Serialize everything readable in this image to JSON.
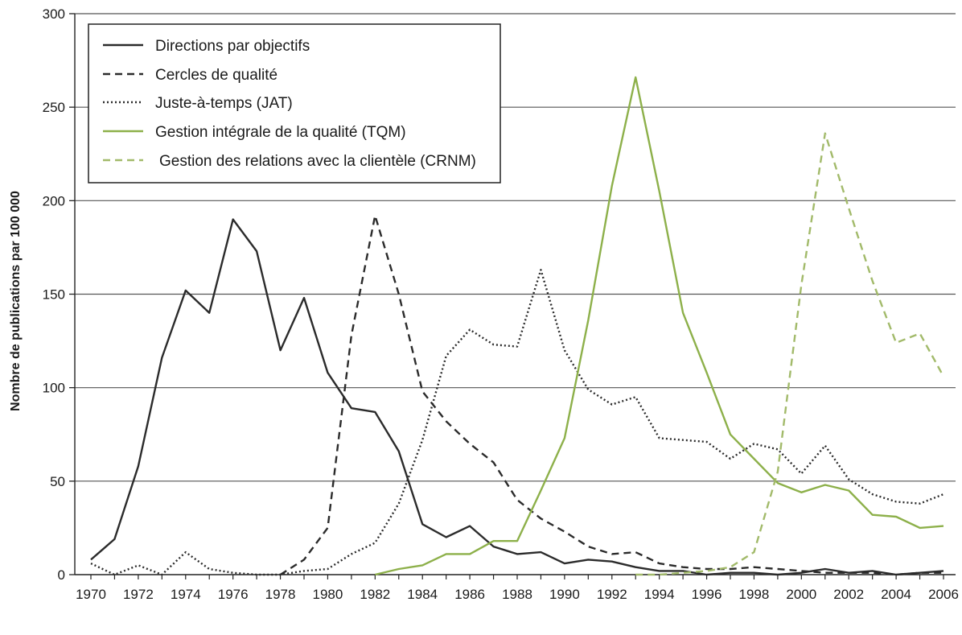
{
  "chart_data": {
    "type": "line",
    "title": "",
    "xlabel": "",
    "ylabel": "Nombre de publications par 100 000",
    "xlim": [
      1970,
      2006
    ],
    "ylim": [
      0,
      300
    ],
    "x_ticks": [
      "1970",
      "1972",
      "1974",
      "1976",
      "1978",
      "1980",
      "1982",
      "1984",
      "1986",
      "1988",
      "1990",
      "1992",
      "1994",
      "1996",
      "1998",
      "2000",
      "2002",
      "2004",
      "2006"
    ],
    "y_ticks": [
      "0",
      "50",
      "100",
      "150",
      "200",
      "250",
      "300"
    ],
    "grid": "horizontal",
    "legend_position": "top-left",
    "series": [
      {
        "name": "Directions par objectifs",
        "color": "#2b2b2b",
        "dash": "solid",
        "x": [
          1970,
          1971,
          1972,
          1973,
          1974,
          1975,
          1976,
          1977,
          1978,
          1979,
          1980,
          1981,
          1982,
          1983,
          1984,
          1985,
          1986,
          1987,
          1988,
          1989,
          1990,
          1991,
          1992,
          1993,
          1994,
          1995,
          1996,
          1997,
          1998,
          1999,
          2000,
          2001,
          2002,
          2003,
          2004,
          2005,
          2006
        ],
        "values": [
          8,
          19,
          58,
          116,
          152,
          140,
          190,
          173,
          120,
          148,
          108,
          89,
          87,
          66,
          27,
          20,
          26,
          15,
          11,
          12,
          6,
          8,
          7,
          4,
          2,
          2,
          0,
          1,
          1,
          0,
          1,
          3,
          1,
          2,
          0,
          1,
          2
        ]
      },
      {
        "name": "Cercles de qualité",
        "color": "#2b2b2b",
        "dash": "dashed",
        "x": [
          1978,
          1979,
          1980,
          1981,
          1982,
          1983,
          1984,
          1985,
          1986,
          1987,
          1988,
          1989,
          1990,
          1991,
          1992,
          1993,
          1994,
          1995,
          1996,
          1997,
          1998,
          1999,
          2000,
          2001,
          2002,
          2003,
          2004,
          2005,
          2006
        ],
        "values": [
          0,
          8,
          25,
          128,
          192,
          150,
          98,
          82,
          70,
          60,
          40,
          30,
          23,
          15,
          11,
          12,
          6,
          4,
          3,
          3,
          4,
          3,
          2,
          1,
          1,
          1,
          0,
          1,
          1
        ]
      },
      {
        "name": "Juste-à-temps (JAT)",
        "color": "#2b2b2b",
        "dash": "dotted",
        "x": [
          1970,
          1971,
          1972,
          1973,
          1974,
          1975,
          1976,
          1977,
          1978,
          1979,
          1980,
          1981,
          1982,
          1983,
          1984,
          1985,
          1986,
          1987,
          1988,
          1989,
          1990,
          1991,
          1992,
          1993,
          1994,
          1995,
          1996,
          1997,
          1998,
          1999,
          2000,
          2001,
          2002,
          2003,
          2004,
          2005,
          2006
        ],
        "values": [
          6,
          0,
          5,
          0,
          12,
          3,
          1,
          0,
          0,
          2,
          3,
          11,
          17,
          38,
          72,
          117,
          131,
          123,
          122,
          163,
          120,
          99,
          91,
          95,
          73,
          72,
          71,
          62,
          70,
          67,
          54,
          69,
          51,
          43,
          39,
          38,
          43
        ]
      },
      {
        "name": "Gestion intégrale de la qualité (TQM)",
        "color": "#8db04a",
        "dash": "solid",
        "x": [
          1982,
          1983,
          1984,
          1985,
          1986,
          1987,
          1988,
          1989,
          1990,
          1991,
          1992,
          1993,
          1994,
          1995,
          1996,
          1997,
          1998,
          1999,
          2000,
          2001,
          2002,
          2003,
          2004,
          2005,
          2006
        ],
        "values": [
          0,
          3,
          5,
          11,
          11,
          18,
          18,
          45,
          73,
          136,
          208,
          266,
          205,
          140,
          108,
          75,
          62,
          49,
          44,
          48,
          45,
          32,
          31,
          25,
          26
        ]
      },
      {
        "name": "Gestion des relations avec la clientèle (CRNM)",
        "color": "#a2ba6a",
        "dash": "dashed",
        "x": [
          1993,
          1994,
          1995,
          1996,
          1997,
          1998,
          1999,
          2000,
          2001,
          2002,
          2003,
          2004,
          2005,
          2006
        ],
        "values": [
          0,
          0,
          1,
          2,
          4,
          12,
          55,
          155,
          236,
          196,
          157,
          124,
          129,
          106
        ]
      }
    ]
  }
}
